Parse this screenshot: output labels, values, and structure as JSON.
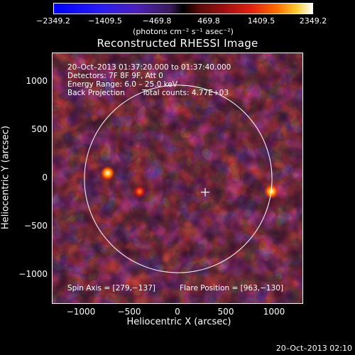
{
  "colorbar": {
    "tick_labels": [
      "−2349.2",
      "−1409.5",
      "−469.8",
      "469.8",
      "1409.5",
      "2349.2"
    ],
    "units": "(photons cm⁻² s⁻¹ asec⁻²)"
  },
  "chart_data": {
    "type": "heatmap",
    "title": "Reconstructed RHESSI Image",
    "xlabel": "Heliocentric X (arcsec)",
    "ylabel": "Heliocentric Y (arcsec)",
    "xlim": [
      -1300,
      1300
    ],
    "ylim": [
      -1300,
      1300
    ],
    "x_ticks": [
      "−1000",
      "−500",
      "0",
      "500",
      "1000"
    ],
    "y_ticks": [
      "1000",
      "500",
      "0",
      "−500",
      "−1000"
    ],
    "x_tick_values": [
      -1000,
      -500,
      0,
      500,
      1000
    ],
    "y_tick_values": [
      1000,
      500,
      0,
      -500,
      -1000
    ],
    "color_range": [
      -2349.2,
      2349.2
    ],
    "solar_limb_radius": 970,
    "bright_sources": [
      {
        "x": -730,
        "y": 60
      },
      {
        "x": 963,
        "y": -130
      },
      {
        "x": -400,
        "y": -130
      }
    ],
    "spin_axis": [
      279,
      -137
    ],
    "flare_position": [
      963,
      -130
    ]
  },
  "info": {
    "time_range": "20–Oct–2013 01:37:20.000 to 01:37:40.000",
    "detectors": "Detectors: 7F 8F 9F, Att 0",
    "energy_range": "Energy Range: 6.0 – 25.0 keV",
    "method": "Back Projection",
    "total_counts": "Total counts: 4.77E+03",
    "spin_axis_text": "Spin Axis = [279,−137]",
    "flare_position_text": "Flare Position = [963,−130]"
  },
  "footer": {
    "timestamp": "20–Oct–2013 02:10"
  }
}
